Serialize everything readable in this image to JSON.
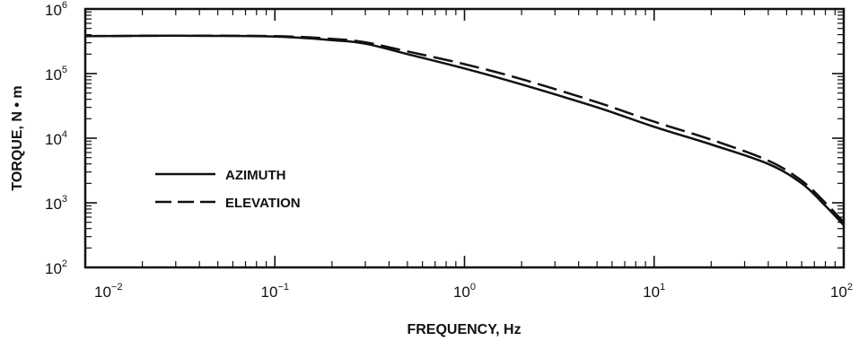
{
  "chart_data": {
    "type": "line",
    "xlabel": "FREQUENCY, Hz",
    "ylabel": "TORQUE, N • m",
    "x_scale": "log",
    "y_scale": "log",
    "xlim": [
      0.01,
      100
    ],
    "ylim": [
      100,
      1000000
    ],
    "x_ticks": [
      {
        "base": "10",
        "exp": "−2",
        "value": 0.01
      },
      {
        "base": "10",
        "exp": "−1",
        "value": 0.1
      },
      {
        "base": "10",
        "exp": "0",
        "value": 1
      },
      {
        "base": "10",
        "exp": "1",
        "value": 10
      },
      {
        "base": "10",
        "exp": "2",
        "value": 100
      }
    ],
    "y_ticks": [
      {
        "base": "10",
        "exp": "2",
        "value": 100
      },
      {
        "base": "10",
        "exp": "3",
        "value": 1000
      },
      {
        "base": "10",
        "exp": "4",
        "value": 10000
      },
      {
        "base": "10",
        "exp": "5",
        "value": 100000
      },
      {
        "base": "10",
        "exp": "6",
        "value": 1000000
      }
    ],
    "grid": false,
    "legend_position": "lower-left",
    "color": "#111111",
    "series": [
      {
        "name": "AZIMUTH",
        "style": "solid",
        "x": [
          0.01,
          0.03,
          0.1,
          0.2,
          0.3,
          0.5,
          1,
          2,
          5,
          10,
          20,
          40,
          60,
          80,
          100
        ],
        "y": [
          380000,
          385000,
          375000,
          330000,
          290000,
          200000,
          120000,
          68000,
          30000,
          15000,
          8000,
          4000,
          2000,
          900,
          450
        ]
      },
      {
        "name": "ELEVATION",
        "style": "dashed",
        "x": [
          0.01,
          0.03,
          0.1,
          0.2,
          0.3,
          0.5,
          1,
          2,
          5,
          10,
          20,
          40,
          60,
          80,
          100
        ],
        "y": [
          380000,
          385000,
          380000,
          345000,
          305000,
          220000,
          140000,
          82000,
          36000,
          18000,
          9500,
          4500,
          2200,
          1000,
          500
        ]
      }
    ]
  }
}
